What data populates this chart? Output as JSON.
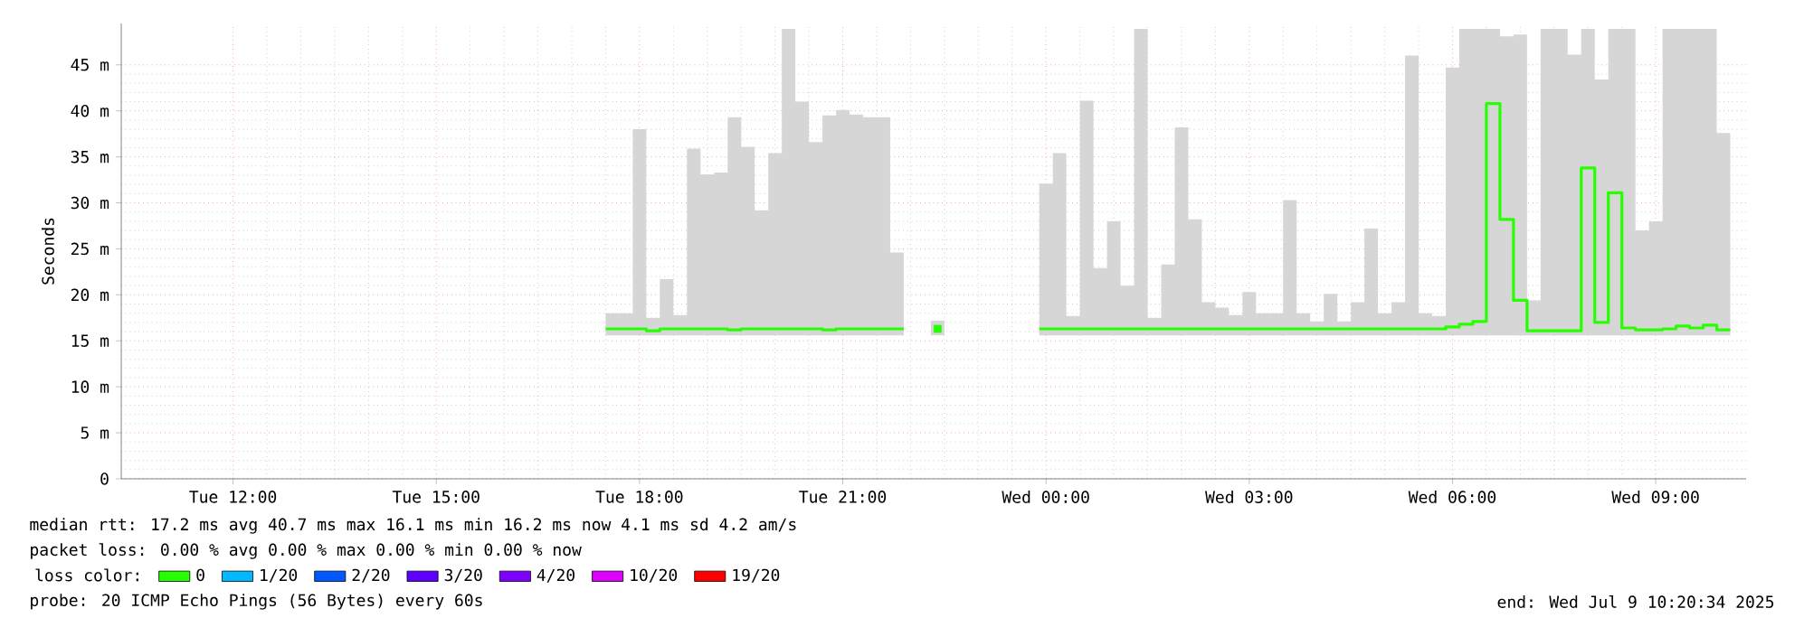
{
  "chart_data": {
    "type": "step",
    "ylabel": "Seconds",
    "legend_title": "loss color:",
    "xlim": [
      "2025-07-08T10:21",
      "2025-07-09T10:20"
    ],
    "ylim": [
      0,
      49.5
    ],
    "xticks": [
      {
        "value": "2025-07-08T12:00",
        "label": "Tue 12:00"
      },
      {
        "value": "2025-07-08T15:00",
        "label": "Tue 15:00"
      },
      {
        "value": "2025-07-08T18:00",
        "label": "Tue 18:00"
      },
      {
        "value": "2025-07-08T21:00",
        "label": "Tue 21:00"
      },
      {
        "value": "2025-07-09T00:00",
        "label": "Wed 00:00"
      },
      {
        "value": "2025-07-09T03:00",
        "label": "Wed 03:00"
      },
      {
        "value": "2025-07-09T06:00",
        "label": "Wed 06:00"
      },
      {
        "value": "2025-07-09T09:00",
        "label": "Wed 09:00"
      }
    ],
    "yticks": [
      0,
      {
        "value": 5,
        "label": "5 m"
      },
      {
        "value": 10,
        "label": "10 m"
      },
      {
        "value": 15,
        "label": "15 m"
      },
      {
        "value": 20,
        "label": "20 m"
      },
      {
        "value": 25,
        "label": "25 m"
      },
      {
        "value": 30,
        "label": "30 m"
      },
      {
        "value": 35,
        "label": "35 m"
      },
      {
        "value": 40,
        "label": "40 m"
      },
      {
        "value": 45,
        "label": "45 m"
      }
    ],
    "grid": true,
    "legend": "bottom left",
    "series": [
      {
        "name": "0",
        "color": "#26ff00",
        "x": [
          "2025-07-08T17:36",
          "2025-07-08T17:48",
          "2025-07-08T18:00",
          "2025-07-08T18:12",
          "2025-07-08T18:24",
          "2025-07-08T18:36",
          "2025-07-08T18:48",
          "2025-07-08T19:00",
          "2025-07-08T19:12",
          "2025-07-08T19:24",
          "2025-07-08T19:36",
          "2025-07-08T19:48",
          "2025-07-08T20:00",
          "2025-07-08T20:12",
          "2025-07-08T20:24",
          "2025-07-08T20:36",
          "2025-07-08T20:48",
          "2025-07-08T21:00",
          "2025-07-08T21:12",
          "2025-07-08T21:24",
          "2025-07-08T21:36",
          "2025-07-08T21:48",
          "2025-07-08T22:00",
          "2025-07-08T22:24",
          "2025-07-08T23:00",
          "2025-07-09T00:00",
          "2025-07-09T00:12",
          "2025-07-09T00:24",
          "2025-07-09T00:36",
          "2025-07-09T00:48",
          "2025-07-09T01:00",
          "2025-07-09T01:12",
          "2025-07-09T01:24",
          "2025-07-09T01:36",
          "2025-07-09T01:48",
          "2025-07-09T02:00",
          "2025-07-09T02:12",
          "2025-07-09T02:24",
          "2025-07-09T02:36",
          "2025-07-09T02:48",
          "2025-07-09T03:00",
          "2025-07-09T03:12",
          "2025-07-09T03:24",
          "2025-07-09T03:36",
          "2025-07-09T03:48",
          "2025-07-09T04:00",
          "2025-07-09T04:12",
          "2025-07-09T04:24",
          "2025-07-09T04:36",
          "2025-07-09T04:48",
          "2025-07-09T05:00",
          "2025-07-09T05:12",
          "2025-07-09T05:24",
          "2025-07-09T05:36",
          "2025-07-09T05:48",
          "2025-07-09T06:00",
          "2025-07-09T06:12",
          "2025-07-09T06:24",
          "2025-07-09T06:36",
          "2025-07-09T06:48",
          "2025-07-09T07:00",
          "2025-07-09T07:12",
          "2025-07-09T07:24",
          "2025-07-09T07:36",
          "2025-07-09T07:48",
          "2025-07-09T08:00",
          "2025-07-09T08:12",
          "2025-07-09T08:24",
          "2025-07-09T08:36",
          "2025-07-09T08:48",
          "2025-07-09T09:00",
          "2025-07-09T09:12",
          "2025-07-09T09:24",
          "2025-07-09T09:36",
          "2025-07-09T09:48",
          "2025-07-09T10:00"
        ],
        "values": [
          16.3,
          16.3,
          16.3,
          16.1,
          16.3,
          16.3,
          16.3,
          16.3,
          16.3,
          16.2,
          16.3,
          16.3,
          16.3,
          16.3,
          16.3,
          16.3,
          16.2,
          16.3,
          16.3,
          16.3,
          16.3,
          16.3,
          null,
          16.3,
          null,
          16.3,
          16.3,
          16.3,
          16.3,
          16.3,
          16.3,
          16.3,
          16.3,
          16.3,
          16.3,
          16.3,
          16.3,
          16.3,
          16.3,
          16.3,
          16.3,
          16.3,
          16.3,
          16.3,
          16.3,
          16.3,
          16.3,
          16.3,
          16.3,
          16.3,
          16.3,
          16.3,
          16.3,
          16.3,
          16.3,
          16.5,
          16.8,
          17.1,
          40.8,
          28.2,
          19.4,
          16.1,
          16.1,
          16.1,
          16.1,
          33.8,
          17.0,
          31.1,
          16.4,
          16.2,
          16.2,
          16.3,
          16.6,
          16.4,
          16.7,
          16.2
        ],
        "lower": [
          15.6,
          15.6,
          15.6,
          15.6,
          15.6,
          15.6,
          15.6,
          15.6,
          15.6,
          15.6,
          15.6,
          15.6,
          15.6,
          15.6,
          15.6,
          15.6,
          15.6,
          15.6,
          15.6,
          15.6,
          15.6,
          15.6,
          null,
          15.6,
          null,
          15.6,
          15.6,
          15.6,
          15.6,
          15.6,
          15.6,
          15.6,
          15.6,
          15.6,
          15.6,
          15.6,
          15.6,
          15.6,
          15.6,
          15.6,
          15.6,
          15.6,
          15.6,
          15.6,
          15.6,
          15.6,
          15.6,
          15.6,
          15.6,
          15.6,
          15.6,
          15.6,
          15.6,
          15.6,
          15.6,
          15.6,
          15.6,
          15.6,
          15.6,
          15.6,
          15.6,
          15.6,
          15.6,
          15.6,
          15.6,
          15.6,
          15.6,
          15.6,
          15.6,
          15.6,
          15.6,
          15.6,
          15.6,
          15.6,
          15.6,
          15.6
        ],
        "upper": [
          18.0,
          18.0,
          38.0,
          17.5,
          21.7,
          17.8,
          35.9,
          33.1,
          33.3,
          39.3,
          36.1,
          29.2,
          35.4,
          48.9,
          41.0,
          36.6,
          39.5,
          40.1,
          39.6,
          39.3,
          39.3,
          24.6,
          null,
          17.2,
          null,
          32.1,
          35.4,
          17.7,
          41.1,
          22.9,
          28.0,
          21.0,
          48.9,
          17.5,
          23.3,
          38.2,
          28.2,
          19.2,
          18.6,
          17.8,
          20.3,
          18.0,
          18.0,
          30.3,
          18.0,
          17.1,
          20.1,
          17.1,
          19.2,
          27.2,
          18.0,
          19.2,
          46.0,
          18.0,
          17.7,
          44.7,
          48.9,
          48.9,
          48.9,
          48.1,
          48.3,
          19.4,
          48.9,
          48.9,
          46.1,
          48.9,
          43.4,
          48.9,
          48.9,
          27.0,
          28.0,
          48.9,
          48.9,
          48.9,
          48.9,
          37.6
        ]
      },
      {
        "name": "1/20",
        "color": "#00b8ff"
      },
      {
        "name": "2/20",
        "color": "#0059ff"
      },
      {
        "name": "3/20",
        "color": "#5e00ff"
      },
      {
        "name": "4/20",
        "color": "#7e00ff"
      },
      {
        "name": "10/20",
        "color": "#dd00ff"
      },
      {
        "name": "19/20",
        "color": "#ff0000"
      }
    ],
    "annotations": [
      "median rtt:  17.2 ms avg  40.7 ms max  16.1 ms min  16.2 ms now  4.1 ms sd  4.2   am/s",
      "packet loss: 0.00 % avg  0.00 % max  0.00 % min  0.00 % now",
      "probe:       20 ICMP Echo Pings (56 Bytes) every 60s",
      "end: Wed Jul  9 10:20:34 2025"
    ]
  }
}
